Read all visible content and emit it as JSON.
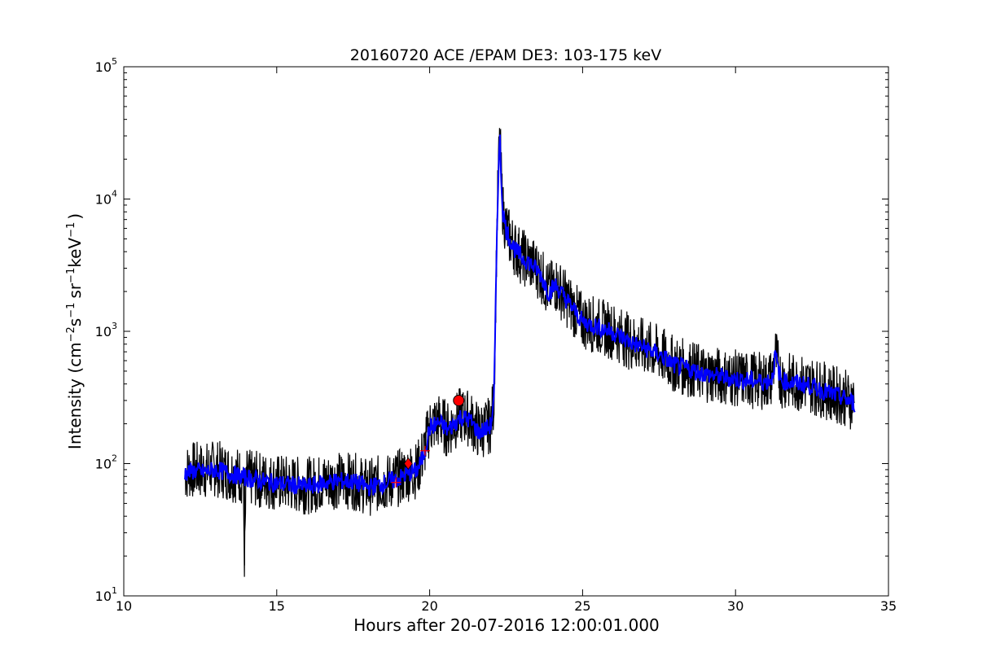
{
  "chart_data": {
    "type": "line",
    "title": "20160720 ACE /EPAM DE3: 103-175 keV",
    "xlabel": "Hours after 20-07-2016 12:00:01.000",
    "ylabel_parts": {
      "pre": "Intensity (cm",
      "e1": "−2",
      "s": "s",
      "e2": "−1",
      "sr": "sr",
      "e3": "−1",
      "kev": "keV",
      "e4": "−1",
      "post": ")"
    },
    "xlim": [
      10,
      35
    ],
    "ylim": [
      10,
      100000
    ],
    "yscale": "log",
    "grid": false,
    "x_ticks": [
      10,
      15,
      20,
      25,
      30,
      35
    ],
    "x_tick_labels": [
      "10",
      "15",
      "20",
      "25",
      "30",
      "35"
    ],
    "y_ticks": [
      10,
      100,
      1000,
      10000,
      100000
    ],
    "y_tick_labels": [
      {
        "base": "10",
        "exp": "1"
      },
      {
        "base": "10",
        "exp": "2"
      },
      {
        "base": "10",
        "exp": "3"
      },
      {
        "base": "10",
        "exp": "4"
      },
      {
        "base": "10",
        "exp": "5"
      }
    ],
    "series": [
      {
        "color": "#000000",
        "style": "raw",
        "x": [
          12.0,
          12.3,
          12.6,
          13.0,
          13.5,
          13.9,
          13.95,
          14.0,
          14.5,
          15.0,
          15.5,
          16.0,
          16.5,
          17.0,
          17.5,
          18.0,
          18.3,
          18.6,
          19.0,
          19.3,
          19.6,
          19.8,
          20.0,
          20.3,
          20.6,
          21.0,
          21.3,
          21.6,
          21.9,
          22.0,
          22.1,
          22.15,
          22.2,
          22.25,
          22.3,
          22.35,
          22.4,
          22.5,
          22.6,
          22.8,
          23.0,
          23.3,
          23.6,
          23.9,
          24.1,
          24.3,
          24.6,
          25.0,
          25.5,
          26.0,
          26.5,
          27.0,
          27.5,
          28.0,
          28.5,
          29.0,
          29.5,
          30.0,
          30.5,
          31.0,
          31.2,
          31.3,
          31.4,
          31.5,
          31.7,
          32.0,
          32.5,
          33.0,
          33.5,
          33.9
        ],
        "y": [
          85,
          90,
          88,
          92,
          85,
          80,
          17,
          78,
          75,
          72,
          70,
          68,
          72,
          75,
          74,
          66,
          70,
          72,
          78,
          85,
          90,
          120,
          190,
          210,
          180,
          230,
          220,
          175,
          190,
          200,
          300,
          1200,
          6000,
          18000,
          28000,
          13000,
          8000,
          6000,
          5200,
          4200,
          3700,
          3300,
          2800,
          2000,
          2300,
          2000,
          1600,
          1200,
          1100,
          1000,
          850,
          760,
          680,
          560,
          520,
          480,
          460,
          440,
          430,
          420,
          450,
          680,
          520,
          430,
          420,
          410,
          390,
          350,
          320,
          290
        ]
      },
      {
        "color": "#0000ff",
        "style": "smoothed",
        "x": [
          12.0,
          12.3,
          12.6,
          13.0,
          13.5,
          14.0,
          14.5,
          15.0,
          15.5,
          16.0,
          16.5,
          17.0,
          17.5,
          18.0,
          18.3,
          18.6,
          19.0,
          19.3,
          19.6,
          19.8,
          20.0,
          20.3,
          20.6,
          21.0,
          21.3,
          21.6,
          21.9,
          22.0,
          22.1,
          22.15,
          22.2,
          22.25,
          22.3,
          22.35,
          22.4,
          22.5,
          22.6,
          22.8,
          23.0,
          23.3,
          23.6,
          23.9,
          24.1,
          24.3,
          24.6,
          25.0,
          25.5,
          26.0,
          26.5,
          27.0,
          27.5,
          28.0,
          28.5,
          29.0,
          29.5,
          30.0,
          30.5,
          31.0,
          31.2,
          31.3,
          31.4,
          31.5,
          31.7,
          32.0,
          32.5,
          33.0,
          33.5,
          33.9
        ],
        "y": [
          85,
          88,
          86,
          90,
          84,
          78,
          74,
          71,
          69,
          67,
          71,
          74,
          73,
          66,
          69,
          72,
          77,
          84,
          89,
          115,
          185,
          205,
          178,
          225,
          215,
          172,
          186,
          196,
          290,
          1150,
          5800,
          17500,
          27500,
          12500,
          7800,
          5900,
          5100,
          4100,
          3650,
          3250,
          2750,
          1950,
          2250,
          1950,
          1580,
          1180,
          1080,
          980,
          840,
          750,
          670,
          555,
          515,
          475,
          455,
          435,
          425,
          415,
          445,
          660,
          510,
          425,
          415,
          405,
          385,
          345,
          315,
          285
        ]
      }
    ],
    "markers": [
      {
        "shape": "circle",
        "color": "#ff0000",
        "x": 20.95,
        "y": 300
      },
      {
        "shape": "diamond",
        "color": "#ff0000",
        "x": 19.3,
        "y": 100
      },
      {
        "shape": "plus",
        "color": "#ff0000",
        "x": 18.9,
        "y": 72
      },
      {
        "shape": "plus",
        "color": "#ff0000",
        "x": 19.85,
        "y": 125
      }
    ]
  }
}
